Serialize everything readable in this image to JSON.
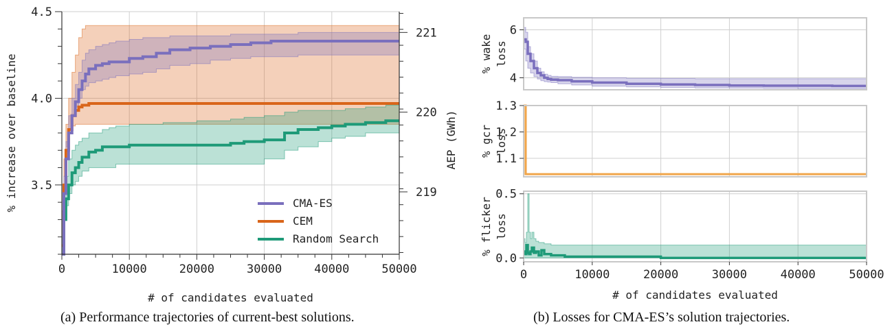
{
  "captions": {
    "a": "(a) Performance trajectories of current-best solutions.",
    "b": "(b) Losses for CMA-ES’s solution trajectories."
  },
  "colors": {
    "cma": "#7a6fbd",
    "cem": "#d9651a",
    "random": "#1e9a78",
    "gcr_line": "#f0a54a",
    "grid": "#cfcfcf",
    "frame": "#c8c8c8"
  },
  "chart_data": [
    {
      "id": "a",
      "type": "line",
      "xlabel": "# of candidates evaluated",
      "ylabel": "% increase over baseline",
      "y2label": "AEP (GWh)",
      "xlim": [
        0,
        50000
      ],
      "ylim": [
        3.1,
        4.5
      ],
      "xticks": [
        0,
        10000,
        20000,
        30000,
        40000,
        50000
      ],
      "yticks": [
        3.5,
        4.0,
        4.5
      ],
      "y2ticks": [
        {
          "label": "219",
          "pos": 3.46
        },
        {
          "label": "220",
          "pos": 3.92
        },
        {
          "label": "221",
          "pos": 4.38
        }
      ],
      "grid": true,
      "legend_position": "lower-right",
      "series": [
        {
          "name": "CMA-ES",
          "key": "cma",
          "x": [
            0,
            300,
            600,
            1000,
            1500,
            2000,
            2500,
            3000,
            3500,
            4000,
            5000,
            6000,
            7000,
            8000,
            10000,
            12000,
            14000,
            16000,
            19000,
            22000,
            25000,
            28000,
            31000,
            35000,
            40000,
            45000,
            50000
          ],
          "y": [
            3.1,
            3.45,
            3.65,
            3.8,
            3.9,
            3.98,
            4.05,
            4.1,
            4.14,
            4.17,
            4.19,
            4.2,
            4.21,
            4.21,
            4.23,
            4.24,
            4.26,
            4.28,
            4.29,
            4.3,
            4.31,
            4.32,
            4.33,
            4.33,
            4.33,
            4.33,
            4.33
          ],
          "lo": [
            3.1,
            3.35,
            3.55,
            3.72,
            3.82,
            3.9,
            3.95,
            4.0,
            4.05,
            4.07,
            4.09,
            4.1,
            4.11,
            4.12,
            4.13,
            4.14,
            4.15,
            4.17,
            4.19,
            4.2,
            4.22,
            4.23,
            4.24,
            4.24,
            4.25,
            4.25,
            4.25
          ],
          "hi": [
            3.1,
            3.55,
            3.75,
            3.9,
            4.0,
            4.08,
            4.15,
            4.22,
            4.26,
            4.28,
            4.3,
            4.31,
            4.32,
            4.33,
            4.34,
            4.35,
            4.35,
            4.36,
            4.36,
            4.36,
            4.37,
            4.37,
            4.37,
            4.38,
            4.38,
            4.38,
            4.38
          ]
        },
        {
          "name": "CEM",
          "key": "cem",
          "x": [
            0,
            300,
            600,
            1000,
            1500,
            2000,
            2500,
            3000,
            3500,
            4000,
            5000,
            6000,
            7000,
            10000,
            20000,
            30000,
            40000,
            50000
          ],
          "y": [
            3.15,
            3.5,
            3.7,
            3.82,
            3.9,
            3.93,
            3.95,
            3.96,
            3.96,
            3.97,
            3.97,
            3.97,
            3.97,
            3.97,
            3.97,
            3.97,
            3.97,
            3.97
          ],
          "lo": [
            3.15,
            3.35,
            3.55,
            3.7,
            3.8,
            3.84,
            3.85,
            3.85,
            3.85,
            3.85,
            3.85,
            3.85,
            3.85,
            3.85,
            3.85,
            3.85,
            3.85,
            3.85
          ],
          "hi": [
            3.15,
            3.65,
            3.85,
            4.0,
            4.15,
            4.25,
            4.35,
            4.4,
            4.42,
            4.42,
            4.42,
            4.42,
            4.42,
            4.42,
            4.42,
            4.42,
            4.42,
            4.42
          ]
        },
        {
          "name": "Random Search",
          "key": "random",
          "x": [
            0,
            300,
            600,
            1000,
            1500,
            2000,
            2500,
            3000,
            4000,
            5000,
            6000,
            7000,
            8000,
            10000,
            15000,
            20000,
            25000,
            27000,
            30000,
            33000,
            35000,
            38000,
            40000,
            42000,
            45000,
            48000,
            50000
          ],
          "y": [
            3.1,
            3.3,
            3.42,
            3.5,
            3.57,
            3.6,
            3.63,
            3.66,
            3.69,
            3.7,
            3.72,
            3.72,
            3.72,
            3.73,
            3.73,
            3.73,
            3.74,
            3.75,
            3.76,
            3.8,
            3.82,
            3.83,
            3.84,
            3.85,
            3.86,
            3.87,
            3.87
          ],
          "lo": [
            3.1,
            3.2,
            3.3,
            3.38,
            3.45,
            3.5,
            3.52,
            3.55,
            3.58,
            3.6,
            3.6,
            3.6,
            3.6,
            3.62,
            3.62,
            3.62,
            3.62,
            3.62,
            3.62,
            3.65,
            3.7,
            3.72,
            3.75,
            3.77,
            3.78,
            3.8,
            3.8
          ],
          "hi": [
            3.1,
            3.4,
            3.55,
            3.65,
            3.7,
            3.73,
            3.75,
            3.77,
            3.8,
            3.8,
            3.82,
            3.83,
            3.84,
            3.85,
            3.86,
            3.87,
            3.88,
            3.89,
            3.9,
            3.92,
            3.93,
            3.93,
            3.93,
            3.94,
            3.95,
            3.96,
            3.96
          ]
        }
      ]
    },
    {
      "id": "b1",
      "type": "line",
      "ylabel": "% wake loss",
      "xlim": [
        0,
        50000
      ],
      "ylim": [
        3.5,
        6.5
      ],
      "yticks": [
        4,
        6
      ],
      "xticks": [
        0,
        10000,
        20000,
        30000,
        40000,
        50000
      ],
      "series": [
        {
          "name": "",
          "key": "cma",
          "x": [
            0,
            300,
            600,
            1000,
            1500,
            2000,
            2500,
            3000,
            3500,
            4000,
            5000,
            7000,
            10000,
            15000,
            20000,
            25000,
            30000,
            35000,
            40000,
            45000,
            50000
          ],
          "y": [
            5.6,
            5.5,
            5.0,
            4.7,
            4.4,
            4.2,
            4.1,
            4.0,
            3.95,
            3.92,
            3.9,
            3.85,
            3.8,
            3.75,
            3.72,
            3.7,
            3.68,
            3.67,
            3.67,
            3.66,
            3.66
          ],
          "lo": [
            5.3,
            5.2,
            4.7,
            4.4,
            4.2,
            4.05,
            3.95,
            3.88,
            3.84,
            3.82,
            3.8,
            3.75,
            3.7,
            3.65,
            3.62,
            3.6,
            3.58,
            3.57,
            3.56,
            3.55,
            3.55
          ],
          "hi": [
            6.1,
            5.9,
            5.3,
            5.0,
            4.7,
            4.4,
            4.25,
            4.15,
            4.1,
            4.06,
            4.05,
            4.02,
            4.0,
            3.98,
            3.97,
            3.96,
            3.96,
            3.96,
            3.96,
            3.96,
            3.96
          ]
        }
      ]
    },
    {
      "id": "b2",
      "type": "line",
      "ylabel": "% gcr loss",
      "xlim": [
        0,
        50000
      ],
      "ylim": [
        1.03,
        1.3
      ],
      "yticks": [
        1.1,
        1.2,
        1.3
      ],
      "xticks": [
        0,
        10000,
        20000,
        30000,
        40000,
        50000
      ],
      "series": [
        {
          "name": "",
          "key": "gcr_line",
          "x": [
            0,
            150,
            300,
            350,
            1000,
            50000
          ],
          "y": [
            1.3,
            1.3,
            1.04,
            1.04,
            1.04,
            1.04
          ],
          "lo": [
            1.04,
            1.04,
            1.04,
            1.04,
            1.04,
            1.04
          ],
          "hi": [
            1.3,
            1.3,
            1.04,
            1.04,
            1.04,
            1.04
          ]
        }
      ]
    },
    {
      "id": "b3",
      "type": "line",
      "ylabel": "% flicker loss",
      "xlim": [
        0,
        50000
      ],
      "ylim": [
        -0.03,
        0.52
      ],
      "yticks": [
        0.0,
        0.5
      ],
      "xticks": [
        0,
        10000,
        20000,
        30000,
        40000,
        50000
      ],
      "xlabel": "# of candidates evaluated",
      "y2label": "AEP (GWh)",
      "series": [
        {
          "name": "",
          "key": "random",
          "x": [
            0,
            200,
            400,
            600,
            800,
            1000,
            1200,
            1500,
            1800,
            2200,
            2600,
            3000,
            4000,
            5000,
            6000,
            7000,
            10000,
            20000,
            30000,
            40000,
            50000
          ],
          "y": [
            0.05,
            0.03,
            0.1,
            0.04,
            0.03,
            0.05,
            0.08,
            0.04,
            0.05,
            0.02,
            0.06,
            0.03,
            0.02,
            0.02,
            0.01,
            0.01,
            0.01,
            0.0,
            0.0,
            0.0,
            0.0
          ],
          "lo": [
            0.0,
            0.0,
            0.0,
            0.0,
            0.0,
            0.0,
            0.0,
            0.0,
            0.0,
            0.0,
            0.0,
            0.0,
            0.0,
            0.0,
            0.0,
            0.0,
            0.0,
            0.0,
            0.0,
            0.0,
            0.0
          ],
          "hi": [
            0.15,
            0.12,
            0.2,
            0.5,
            0.2,
            0.15,
            0.2,
            0.15,
            0.13,
            0.12,
            0.12,
            0.11,
            0.1,
            0.1,
            0.1,
            0.1,
            0.1,
            0.1,
            0.1,
            0.1,
            0.1
          ]
        }
      ]
    }
  ]
}
